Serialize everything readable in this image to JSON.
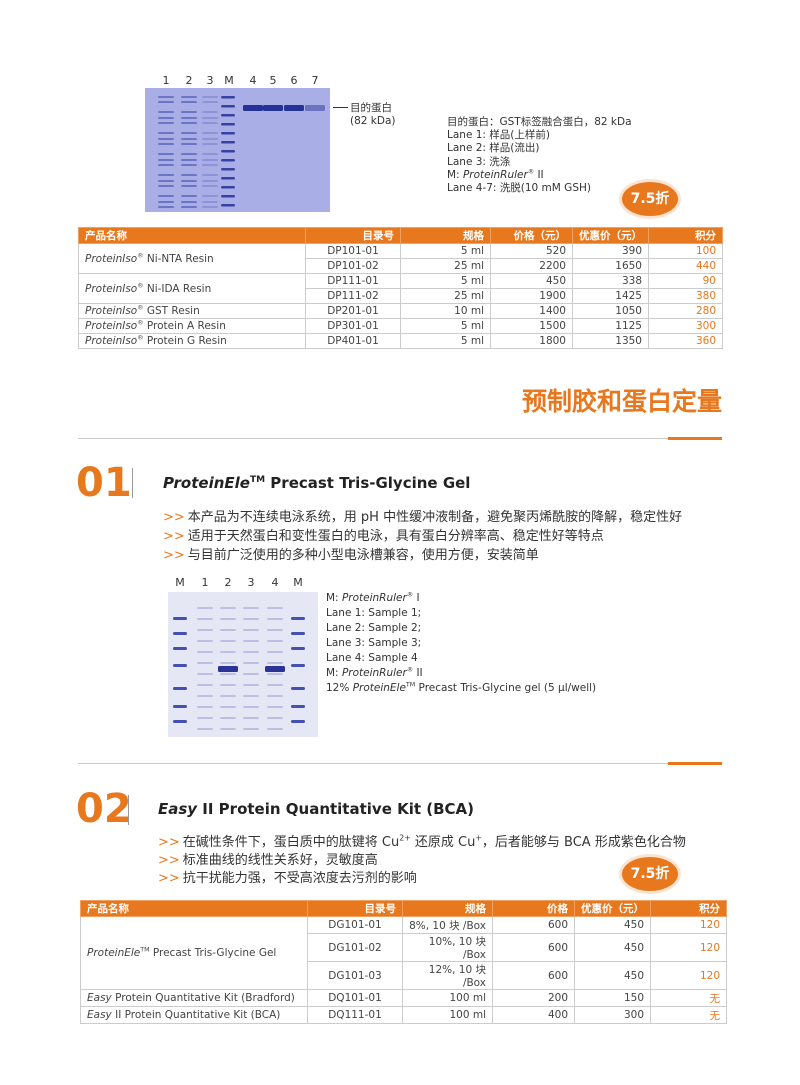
{
  "gel_figure_1": {
    "lane_labels": [
      "1",
      "2",
      "3",
      "M",
      "4",
      "5",
      "6",
      "7"
    ],
    "band_label": "目的蛋白",
    "band_size": "(82 kDa)",
    "notes": [
      [
        "目的蛋白：GST标签融合蛋白，82 kDa"
      ],
      [
        "Lane 1: 样品(上样前)"
      ],
      [
        "Lane 2: 样品(流出)"
      ],
      [
        "Lane 3: 洗涤"
      ],
      [
        "M: ",
        "ProteinRuler",
        "®",
        " II"
      ],
      [
        "Lane 4-7: 洗脱(10 mM GSH)"
      ]
    ]
  },
  "discount_badge_1": "7.5折",
  "resin_table": {
    "header": [
      "产品名称",
      "目录号",
      "规格",
      "价格（元）",
      "优惠价（元）",
      "积分"
    ],
    "groups": [
      {
        "product": [
          "ProteinIso",
          "®",
          " Ni-NTA Resin"
        ],
        "rows": [
          [
            "DP101-01",
            "5 ml",
            520,
            390,
            100
          ],
          [
            "DP101-02",
            "25 ml",
            2200,
            1650,
            440
          ]
        ]
      },
      {
        "product": [
          "ProteinIso",
          "®",
          " Ni-IDA Resin"
        ],
        "rows": [
          [
            "DP111-01",
            "5 ml",
            450,
            338,
            90
          ],
          [
            "DP111-02",
            "25 ml",
            1900,
            1425,
            380
          ]
        ]
      },
      {
        "product": [
          "ProteinIso",
          "®",
          "  GST Resin"
        ],
        "rows": [
          [
            "DP201-01",
            "10 ml",
            1400,
            1050,
            280
          ]
        ]
      },
      {
        "product": [
          "ProteinIso",
          "®",
          " Protein A Resin"
        ],
        "rows": [
          [
            "DP301-01",
            "5 ml",
            1500,
            1125,
            300
          ]
        ]
      },
      {
        "product": [
          "ProteinIso",
          "®",
          " Protein G Resin"
        ],
        "rows": [
          [
            "DP401-01",
            "5 ml",
            1800,
            1350,
            360
          ]
        ]
      }
    ]
  },
  "section_title": "预制胶和蛋白定量",
  "bullet": ">>",
  "product_1": {
    "number": "01",
    "title": [
      "ProteinEle",
      "TM",
      " Precast Tris-Glycine Gel"
    ],
    "features": [
      [
        "本产品为不连续电泳系统，用 pH 中性缓冲液制备，避免聚丙烯酰胺的降解，稳定性好"
      ],
      [
        "适用于天然蛋白和变性蛋白的电泳，具有蛋白分辨率高、稳定性好等特点"
      ],
      [
        "与目前广泛使用的多种小型电泳槽兼容，使用方便，安装简单"
      ]
    ],
    "gel": {
      "lane_labels": [
        "M",
        "1",
        "2",
        "3",
        "4",
        "M"
      ],
      "notes": [
        [
          "M: ",
          "ProteinRuler",
          "®",
          " I"
        ],
        [
          "Lane 1: Sample 1;"
        ],
        [
          "Lane 2: Sample 2;"
        ],
        [
          "Lane 3: Sample 3;"
        ],
        [
          "Lane 4: Sample 4"
        ],
        [
          "M: ",
          "ProteinRuler",
          "®",
          " II"
        ],
        [
          "12% ",
          "ProteinEle",
          "TM",
          " Precast Tris-Glycine gel (5 µl/well)"
        ]
      ]
    }
  },
  "product_2": {
    "number": "02",
    "title": [
      "Easy",
      " II Protein Quantitative Kit (BCA)"
    ],
    "features": [
      [
        "在碱性条件下，蛋白质中的肽键将 Cu",
        "2+",
        " 还原成 Cu",
        "+",
        "，后者能够与 BCA 形成紫色化合物"
      ],
      [
        "标准曲线的线性关系好，灵敏度高"
      ],
      [
        "抗干扰能力强，不受高浓度去污剂的影响"
      ]
    ]
  },
  "discount_badge_2": "7.5折",
  "gel_table": {
    "header": [
      "产品名称",
      "目录号",
      "规格",
      "价格",
      "优惠价（元）",
      "积分"
    ],
    "groups": [
      {
        "product": [
          "ProteinEle",
          "TM",
          " Precast Tris-Glycine Gel"
        ],
        "rows": [
          [
            "DG101-01",
            "8%, 10 块 /Box",
            600,
            450,
            120
          ],
          [
            "DG101-02",
            "10%, 10 块 /Box",
            600,
            450,
            120
          ],
          [
            "DG101-03",
            "12%, 10 块 /Box",
            600,
            450,
            120
          ]
        ]
      },
      {
        "product": [
          "Easy",
          " Protein Quantitative Kit (Bradford)"
        ],
        "rows": [
          [
            "DQ101-01",
            "100 ml",
            200,
            150,
            "无"
          ]
        ]
      },
      {
        "product": [
          "Easy",
          " II Protein Quantitative Kit (BCA)"
        ],
        "rows": [
          [
            "DQ111-01",
            "100 ml",
            400,
            300,
            "无"
          ]
        ]
      }
    ]
  }
}
